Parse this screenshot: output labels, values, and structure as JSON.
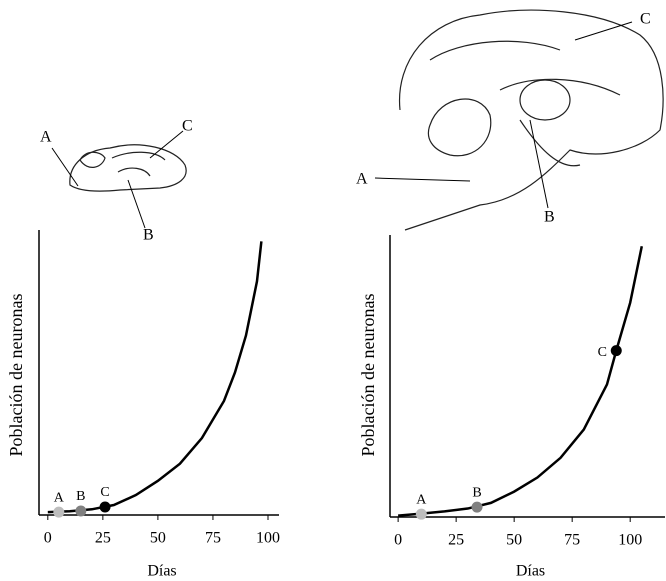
{
  "illustrations": [
    {
      "labels": [
        "A",
        "C",
        "B"
      ]
    },
    {
      "labels": [
        "C",
        "A",
        "B"
      ]
    }
  ],
  "chart_data": [
    {
      "type": "line",
      "x_label": "Días",
      "y_label": "Población de neuronas",
      "xlim": [
        -4,
        105
      ],
      "xticks": [
        0,
        25,
        50,
        75,
        100
      ],
      "ylim": [
        0,
        100
      ],
      "color": "#000000",
      "x": [
        0,
        10,
        20,
        30,
        40,
        50,
        60,
        70,
        80,
        85,
        90,
        95,
        97
      ],
      "values": [
        1,
        1.3,
        2,
        3.5,
        7,
        12,
        18,
        27,
        40,
        50,
        63,
        82,
        96
      ],
      "points": {
        "labels": [
          "A",
          "B",
          "C"
        ],
        "x": [
          5,
          15,
          26
        ],
        "values": [
          1,
          1.4,
          2.8
        ],
        "colors": [
          "#bdbdbd",
          "#808080",
          "#000000"
        ]
      }
    },
    {
      "type": "line",
      "x_label": "Días",
      "y_label": "Población de neuronas",
      "xlim": [
        -3.5,
        115
      ],
      "xticks": [
        0,
        25,
        50,
        75,
        100
      ],
      "ylim": [
        0,
        100
      ],
      "color": "#000000",
      "x": [
        0,
        10,
        20,
        30,
        40,
        50,
        60,
        70,
        80,
        90,
        94,
        100,
        105
      ],
      "values": [
        0.5,
        1.2,
        2,
        3,
        5,
        9,
        14,
        21,
        31,
        47,
        59,
        76,
        96
      ],
      "points": {
        "labels": [
          "A",
          "B",
          "C"
        ],
        "x": [
          10,
          34,
          94
        ],
        "values": [
          1,
          3.5,
          59
        ],
        "colors": [
          "#bdbdbd",
          "#808080",
          "#000000"
        ]
      }
    }
  ]
}
